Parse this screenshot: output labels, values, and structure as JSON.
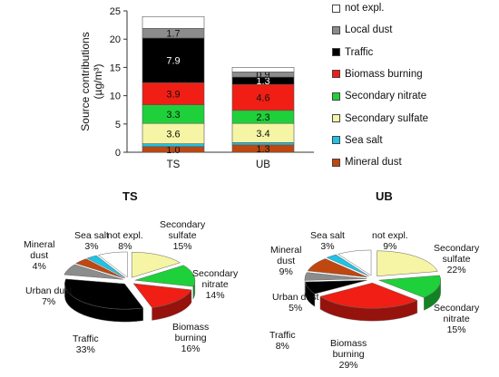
{
  "chart_data": [
    {
      "type": "bar",
      "stacked": true,
      "categories": [
        "TS",
        "UB"
      ],
      "ylabel": "Source contributions (µg/m³)",
      "ylim": [
        0,
        25
      ],
      "yticks": [
        0,
        5,
        10,
        15,
        20,
        25
      ],
      "series": [
        {
          "name": "Mineral dust",
          "color": "#c0470f",
          "values": [
            1.0,
            1.3
          ],
          "labels": [
            "1.0",
            "1.3"
          ]
        },
        {
          "name": "Sea salt",
          "color": "#1ec3e6",
          "values": [
            0.5,
            0.4
          ],
          "labels": [
            "",
            ""
          ]
        },
        {
          "name": "Secondary sulfate",
          "color": "#f5f5a5",
          "values": [
            3.6,
            3.4
          ],
          "labels": [
            "3.6",
            "3.4"
          ]
        },
        {
          "name": "Secondary nitrate",
          "color": "#1ed13a",
          "values": [
            3.3,
            2.3
          ],
          "labels": [
            "3.3",
            "2.3"
          ]
        },
        {
          "name": "Biomass burning",
          "color": "#f01e14",
          "values": [
            3.9,
            4.6
          ],
          "labels": [
            "3.9",
            "4.6"
          ]
        },
        {
          "name": "Traffic",
          "color": "#000000",
          "values": [
            7.9,
            1.3
          ],
          "labels": [
            "7.9",
            "1.3"
          ]
        },
        {
          "name": "Local dust",
          "color": "#8c8c8c",
          "values": [
            1.7,
            0.9
          ],
          "labels": [
            "1.7",
            "0.9"
          ]
        },
        {
          "name": "not expl.",
          "color": "#ffffff",
          "values": [
            2.1,
            0.8
          ],
          "labels": [
            "",
            ""
          ]
        }
      ],
      "legend_order": [
        "not expl.",
        "Local dust",
        "Traffic",
        "Biomass burning",
        "Secondary nitrate",
        "Secondary sulfate",
        "Sea salt",
        "Mineral dust"
      ],
      "legend_placement": "right"
    },
    {
      "type": "pie",
      "title": "TS",
      "slices": [
        {
          "name": "Secondary sulfate",
          "value": 15,
          "label": "Secondary\nsulfate\n15%",
          "color": "#f5f5a5"
        },
        {
          "name": "Secondary nitrate",
          "value": 14,
          "label": "Secondary\nnitrate\n14%",
          "color": "#1ed13a"
        },
        {
          "name": "Biomass burning",
          "value": 16,
          "label": "Biomass\nburning\n16%",
          "color": "#f01e14"
        },
        {
          "name": "Traffic",
          "value": 33,
          "label": "Traffic\n33%",
          "color": "#000000"
        },
        {
          "name": "Urban dust",
          "value": 7,
          "label": "Urban dust\n7%",
          "color": "#8c8c8c"
        },
        {
          "name": "Mineral dust",
          "value": 4,
          "label": "Mineral\ndust\n4%",
          "color": "#c0470f"
        },
        {
          "name": "Sea salt",
          "value": 3,
          "label": "Sea salt\n3%",
          "color": "#1ec3e6"
        },
        {
          "name": "not expl.",
          "value": 8,
          "label": "not expl.\n8%",
          "color": "#ffffff"
        }
      ]
    },
    {
      "type": "pie",
      "title": "UB",
      "slices": [
        {
          "name": "Secondary sulfate",
          "value": 22,
          "label": "Secondary\nsulfate\n22%",
          "color": "#f5f5a5"
        },
        {
          "name": "Secondary nitrate",
          "value": 15,
          "label": "Secondary\nnitrate\n15%",
          "color": "#1ed13a"
        },
        {
          "name": "Biomass burning",
          "value": 29,
          "label": "Biomass\nburning\n29%",
          "color": "#f01e14"
        },
        {
          "name": "Traffic",
          "value": 8,
          "label": "Traffic\n8%",
          "color": "#000000"
        },
        {
          "name": "Urban dust",
          "value": 5,
          "label": "Urban dust\n5%",
          "color": "#8c8c8c"
        },
        {
          "name": "Mineral dust",
          "value": 9,
          "label": "Mineral\ndust\n9%",
          "color": "#c0470f"
        },
        {
          "name": "Sea salt",
          "value": 3,
          "label": "Sea salt\n3%",
          "color": "#1ec3e6"
        },
        {
          "name": "not expl.",
          "value": 9,
          "label": "not expl.\n9%",
          "color": "#ffffff"
        }
      ]
    }
  ]
}
